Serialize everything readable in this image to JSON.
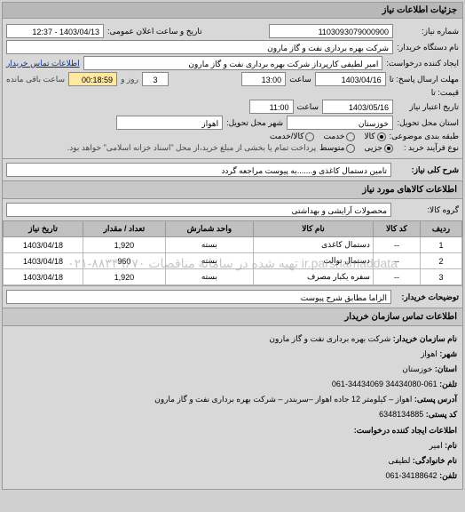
{
  "panel_title": "جزئیات اطلاعات نیاز",
  "header": {
    "need_no_label": "شماره نیاز:",
    "need_no": "1103093079000900",
    "announce_label": "تاریخ و ساعت اعلان عمومی:",
    "announce": "1403/04/13 - 12:37",
    "org_label": "نام دستگاه خریدار:",
    "org": "شرکت بهره برداری نفت و گاز مارون",
    "requester_label": "ایجاد کننده درخواست:",
    "requester": "امیر لطیفی کارپرداز شرکت بهره برداری نفت و گاز مارون",
    "contact_link": "اطلاعات تماس خریدار",
    "deadline_from_label": "مهلت ارسال پاسخ: تا",
    "deadline_from_date": "1403/04/16",
    "deadline_from_time_label": "ساعت",
    "deadline_from_time": "13:00",
    "remaining_days": "3",
    "remaining_days_label": "روز و",
    "remaining_time": "00:18:59",
    "remaining_label2": "ساعت باقی مانده",
    "price_label": "قیمت: تا",
    "validity_label": "تاریخ اعتبار نیاز",
    "valid_to_date": "1403/05/16",
    "valid_to_time_label": "ساعت",
    "valid_to_time": "11:00",
    "province_label": "استان محل تحویل:",
    "province": "خوزستان",
    "city_label": "شهر محل تحویل:",
    "city": "اهواز",
    "budget_label": "طبقه بندی موضوعی:",
    "budget_options": {
      "goods": "کالا",
      "service": "خدمت",
      "both": "کالا/خدمت"
    },
    "budget_selected": "goods",
    "purchase_type_label": "نوع فرآیند خرید :",
    "purchase_options": {
      "minor": "جزیی",
      "medium": "متوسط"
    },
    "purchase_selected": "minor",
    "purchase_note": "پرداخت تمام یا بخشی از مبلغ خرید،از محل \"اسناد خزانه اسلامی\" خواهد بود."
  },
  "need_desc": {
    "label": "شرح کلی نیاز:",
    "value": "تامین دستمال کاغذی و.......به پیوست مراجعه گردد"
  },
  "goods": {
    "section_title": "اطلاعات کالاهای مورد نیاز",
    "group_label": "گروه کالا:",
    "group": "محصولات آرایشی و بهداشتی",
    "columns": {
      "row": "ردیف",
      "code": "کد کالا",
      "name": "نام کالا",
      "unit": "واحد شمارش",
      "qty": "تعداد / مقدار",
      "date": "تاریخ نیاز"
    },
    "rows": [
      {
        "n": "1",
        "code": "--",
        "name": "دستمال کاغذی",
        "unit": "بسته",
        "qty": "1,920",
        "date": "1403/04/18"
      },
      {
        "n": "2",
        "code": "--",
        "name": "دستمال توالت",
        "unit": "بسته",
        "qty": "960",
        "date": "1403/04/18"
      },
      {
        "n": "3",
        "code": "--",
        "name": "سفره یکبار مصرف",
        "unit": "بسته",
        "qty": "1,920",
        "date": "1403/04/18"
      }
    ],
    "watermark": "۰۲۱-۸۸۳۴۹۶۷۰  تهیه شده در سامانه مناقصات ir.parsnamaddata"
  },
  "buyer_notes": {
    "label": "توضیحات خریدار:",
    "value": "الزاما مطابق شرح پیوست"
  },
  "contact": {
    "title": "اطلاعات تماس سازمان خریدار",
    "org_label": "نام سازمان خریدار:",
    "org": "شرکت بهره برداری نفت و گاز مارون",
    "city_label": "شهر:",
    "city": "اهواز",
    "province_label": "استان:",
    "province": "خوزستان",
    "phone_label": "تلفن:",
    "phone": "061-34434080 34434069-061",
    "address_label": "آدرس پستی:",
    "address": "اهواز – کیلومتر 12 جاده اهواز –سربندر – شرکت بهره برداری نفت و گاز مارون",
    "post_label": "کد پستی:",
    "post": "6348134885",
    "req_creator_title": "اطلاعات ایجاد کننده درخواست:",
    "fname_label": "نام:",
    "fname": "امیر",
    "lname_label": "نام خانوادگی:",
    "lname": "لطیفی",
    "tel_label": "تلفن:",
    "tel": "34188642-061"
  }
}
